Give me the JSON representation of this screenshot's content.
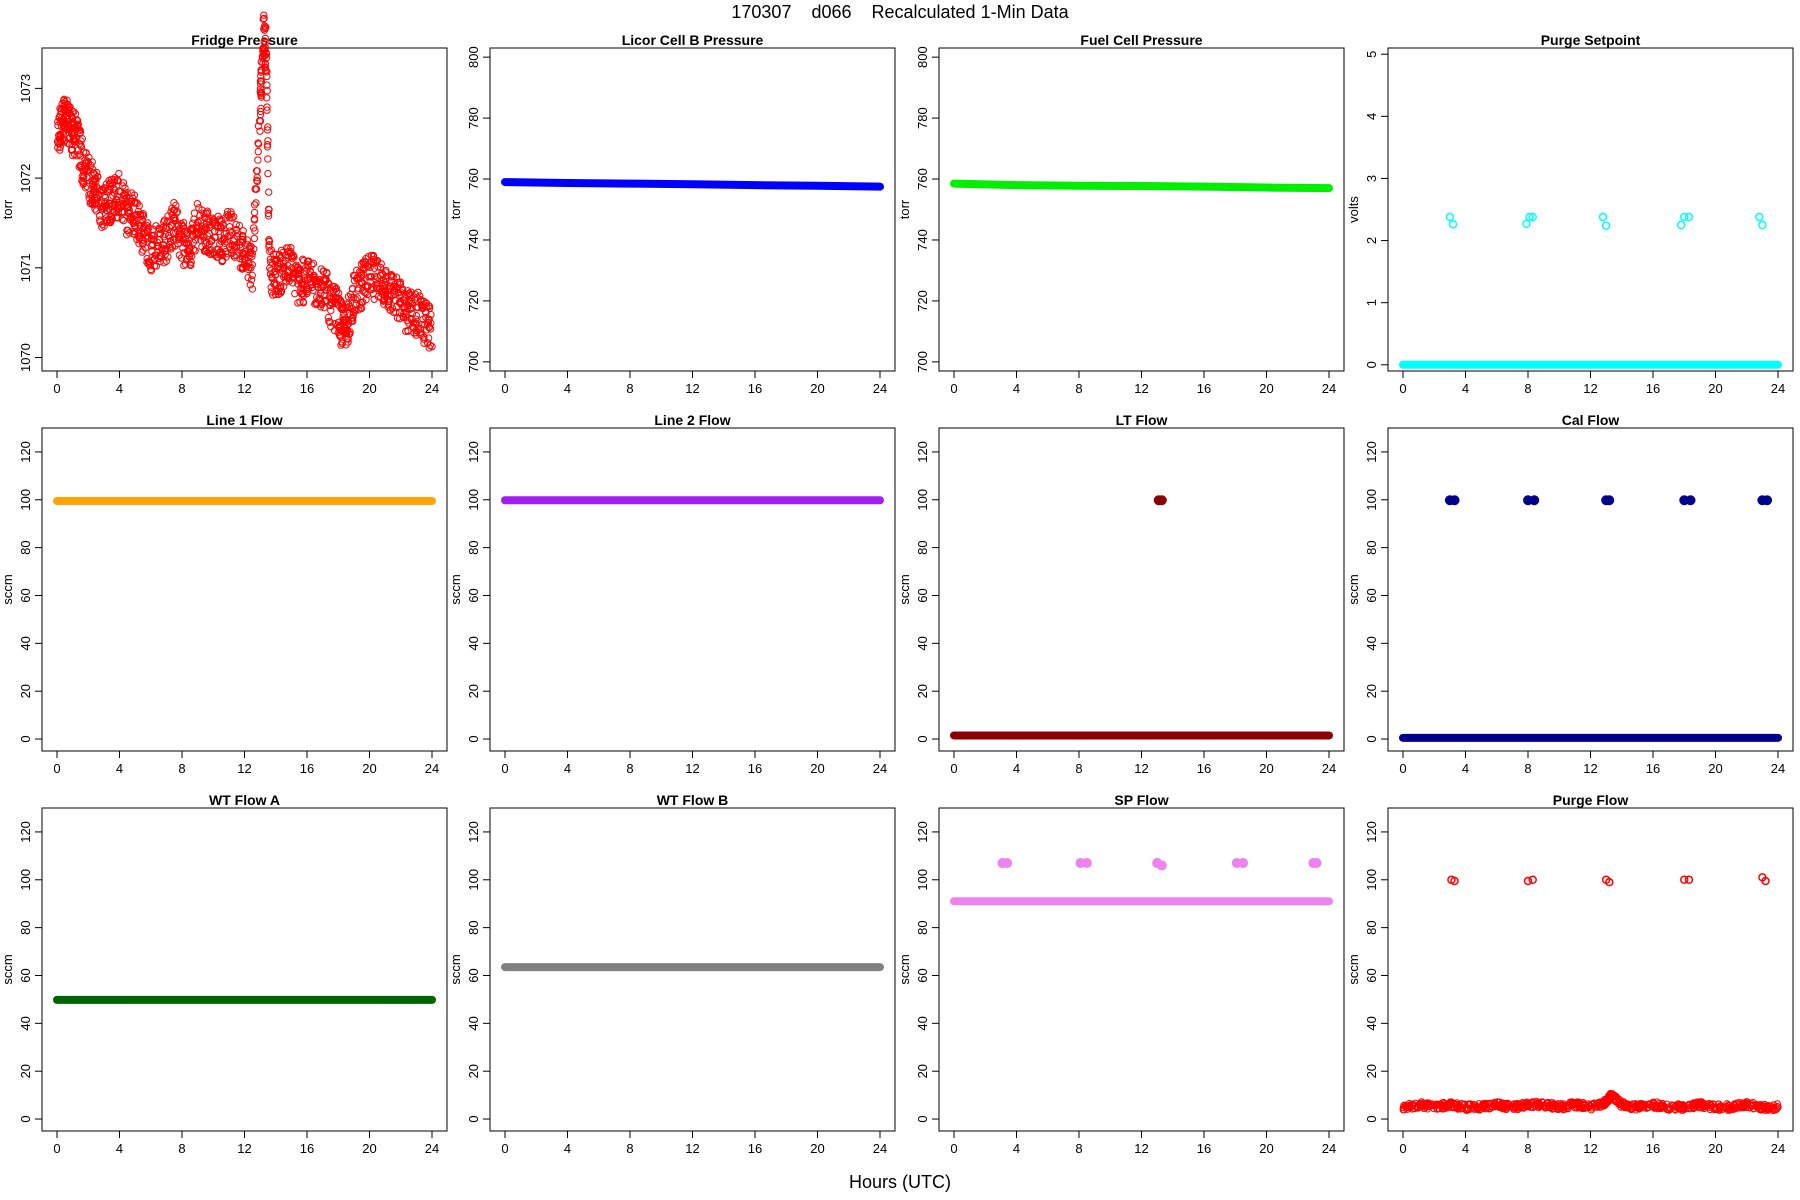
{
  "title": "170307    d066    Recalculated 1-Min Data",
  "xlabel": "Hours (UTC)",
  "chart_data": [
    {
      "type": "scatter",
      "title": "Fridge Pressure",
      "ylabel": "torr",
      "xlim": [
        0,
        24
      ],
      "xticks": [
        0,
        4,
        8,
        12,
        16,
        20,
        24
      ],
      "ylim": [
        1069.85,
        1073.45
      ],
      "yticks": [
        1070,
        1071,
        1072,
        1073
      ],
      "color": "#ff0000",
      "marker": "open-circle",
      "series": [
        {
          "x": [
            0,
            0.3,
            0.6,
            0.9,
            1.2,
            1.6,
            2.0,
            2.4,
            2.8,
            3.2,
            3.6,
            4.0,
            4.5,
            5.0,
            5.5,
            6.0,
            6.5,
            7.0,
            7.5,
            8.0,
            8.5,
            9.0,
            9.5,
            10.0,
            10.5,
            11.0,
            11.5,
            12.0,
            12.5,
            13.0,
            13.2,
            13.4,
            13.6,
            14.0,
            14.5,
            15.0,
            15.5,
            16.0,
            16.5,
            17.0,
            17.5,
            18.0,
            18.3,
            18.6,
            19.0,
            19.5,
            20.0,
            20.5,
            21.0,
            21.5,
            22.0,
            22.5,
            23.0,
            23.5,
            24.0
          ],
          "y": [
            1072.4,
            1072.6,
            1072.7,
            1072.5,
            1072.5,
            1072.2,
            1072.0,
            1071.9,
            1071.7,
            1071.7,
            1071.8,
            1071.8,
            1071.6,
            1071.6,
            1071.4,
            1071.2,
            1071.3,
            1071.3,
            1071.5,
            1071.3,
            1071.2,
            1071.5,
            1071.4,
            1071.4,
            1071.3,
            1071.4,
            1071.3,
            1071.2,
            1071.0,
            1072.8,
            1073.6,
            1073.4,
            1071.0,
            1070.9,
            1071.0,
            1071.0,
            1070.8,
            1070.9,
            1070.8,
            1070.8,
            1070.6,
            1070.5,
            1070.3,
            1070.4,
            1070.7,
            1070.8,
            1070.9,
            1070.9,
            1070.8,
            1070.7,
            1070.6,
            1070.5,
            1070.5,
            1070.4,
            1070.3
          ]
        }
      ]
    },
    {
      "type": "scatter",
      "title": "Licor Cell B Pressure",
      "ylabel": "torr",
      "xlim": [
        0,
        24
      ],
      "xticks": [
        0,
        4,
        8,
        12,
        16,
        20,
        24
      ],
      "ylim": [
        697,
        803
      ],
      "yticks": [
        700,
        720,
        740,
        760,
        780,
        800
      ],
      "color": "#0000ff",
      "marker": "filled",
      "series": [
        {
          "x": [
            0,
            4,
            8,
            12,
            16,
            20,
            24
          ],
          "y": [
            759.0,
            758.7,
            758.5,
            758.3,
            758.0,
            757.8,
            757.5
          ]
        }
      ]
    },
    {
      "type": "scatter",
      "title": "Fuel Cell Pressure",
      "ylabel": "torr",
      "xlim": [
        0,
        24
      ],
      "xticks": [
        0,
        4,
        8,
        12,
        16,
        20,
        24
      ],
      "ylim": [
        697,
        803
      ],
      "yticks": [
        700,
        720,
        740,
        760,
        780,
        800
      ],
      "color": "#00ee00",
      "marker": "filled",
      "series": [
        {
          "x": [
            0,
            4,
            8,
            12,
            16,
            20,
            24
          ],
          "y": [
            758.5,
            758.0,
            757.8,
            757.7,
            757.5,
            757.2,
            757.0
          ]
        }
      ]
    },
    {
      "type": "scatter",
      "title": "Purge Setpoint",
      "ylabel": "volts",
      "xlim": [
        0,
        24
      ],
      "xticks": [
        0,
        4,
        8,
        12,
        16,
        20,
        24
      ],
      "ylim": [
        -0.1,
        5.1
      ],
      "yticks": [
        0,
        1,
        2,
        3,
        4,
        5
      ],
      "color": "#00ffff",
      "marker": "filled",
      "series": [
        {
          "x": [
            0,
            24
          ],
          "y": [
            0,
            0
          ]
        }
      ],
      "points": [
        [
          3.0,
          2.38
        ],
        [
          3.2,
          2.26
        ],
        [
          7.9,
          2.27
        ],
        [
          8.1,
          2.38
        ],
        [
          8.3,
          2.38
        ],
        [
          12.8,
          2.38
        ],
        [
          13.0,
          2.24
        ],
        [
          17.8,
          2.25
        ],
        [
          18.0,
          2.38
        ],
        [
          18.3,
          2.38
        ],
        [
          22.8,
          2.38
        ],
        [
          23.0,
          2.25
        ]
      ]
    },
    {
      "type": "scatter",
      "title": "Line 1 Flow",
      "ylabel": "sccm",
      "xlim": [
        0,
        24
      ],
      "xticks": [
        0,
        4,
        8,
        12,
        16,
        20,
        24
      ],
      "ylim": [
        -5,
        130
      ],
      "yticks": [
        0,
        20,
        40,
        60,
        80,
        100,
        120
      ],
      "color": "#ffa500",
      "marker": "filled",
      "series": [
        {
          "x": [
            0,
            24
          ],
          "y": [
            99.5,
            99.5
          ]
        }
      ]
    },
    {
      "type": "scatter",
      "title": "Line 2 Flow",
      "ylabel": "sccm",
      "xlim": [
        0,
        24
      ],
      "xticks": [
        0,
        4,
        8,
        12,
        16,
        20,
        24
      ],
      "ylim": [
        -5,
        130
      ],
      "yticks": [
        0,
        20,
        40,
        60,
        80,
        100,
        120
      ],
      "color": "#a020f0",
      "marker": "filled",
      "series": [
        {
          "x": [
            0,
            24
          ],
          "y": [
            99.8,
            99.8
          ]
        }
      ]
    },
    {
      "type": "scatter",
      "title": "LT Flow",
      "ylabel": "sccm",
      "xlim": [
        0,
        24
      ],
      "xticks": [
        0,
        4,
        8,
        12,
        16,
        20,
        24
      ],
      "ylim": [
        -5,
        130
      ],
      "yticks": [
        0,
        20,
        40,
        60,
        80,
        100,
        120
      ],
      "color": "#8b0000",
      "marker": "filled",
      "series": [
        {
          "x": [
            0,
            24
          ],
          "y": [
            1.5,
            1.5
          ]
        }
      ],
      "points": [
        [
          13.1,
          99.8
        ],
        [
          13.3,
          99.8
        ]
      ]
    },
    {
      "type": "scatter",
      "title": "Cal Flow",
      "ylabel": "sccm",
      "xlim": [
        0,
        24
      ],
      "xticks": [
        0,
        4,
        8,
        12,
        16,
        20,
        24
      ],
      "ylim": [
        -5,
        130
      ],
      "yticks": [
        0,
        20,
        40,
        60,
        80,
        100,
        120
      ],
      "color": "#00008b",
      "marker": "filled",
      "series": [
        {
          "x": [
            0,
            24
          ],
          "y": [
            0.5,
            0.5
          ]
        }
      ],
      "points": [
        [
          3.0,
          99.8
        ],
        [
          3.3,
          99.8
        ],
        [
          8.0,
          99.8
        ],
        [
          8.4,
          99.8
        ],
        [
          13.0,
          99.8
        ],
        [
          13.2,
          99.8
        ],
        [
          18.0,
          99.8
        ],
        [
          18.4,
          99.8
        ],
        [
          23.0,
          99.8
        ],
        [
          23.3,
          99.8
        ]
      ]
    },
    {
      "type": "scatter",
      "title": "WT Flow A",
      "ylabel": "sccm",
      "xlim": [
        0,
        24
      ],
      "xticks": [
        0,
        4,
        8,
        12,
        16,
        20,
        24
      ],
      "ylim": [
        -5,
        130
      ],
      "yticks": [
        0,
        20,
        40,
        60,
        80,
        100,
        120
      ],
      "color": "#006400",
      "marker": "filled",
      "series": [
        {
          "x": [
            0,
            24
          ],
          "y": [
            49.8,
            49.8
          ]
        }
      ]
    },
    {
      "type": "scatter",
      "title": "WT Flow B",
      "ylabel": "sccm",
      "xlim": [
        0,
        24
      ],
      "xticks": [
        0,
        4,
        8,
        12,
        16,
        20,
        24
      ],
      "ylim": [
        -5,
        130
      ],
      "yticks": [
        0,
        20,
        40,
        60,
        80,
        100,
        120
      ],
      "color": "#808080",
      "marker": "filled",
      "series": [
        {
          "x": [
            0,
            24
          ],
          "y": [
            63.5,
            63.5
          ]
        }
      ]
    },
    {
      "type": "scatter",
      "title": "SP Flow",
      "ylabel": "sccm",
      "xlim": [
        0,
        24
      ],
      "xticks": [
        0,
        4,
        8,
        12,
        16,
        20,
        24
      ],
      "ylim": [
        -5,
        130
      ],
      "yticks": [
        0,
        20,
        40,
        60,
        80,
        100,
        120
      ],
      "color": "#ee82ee",
      "marker": "filled",
      "series": [
        {
          "x": [
            0,
            24
          ],
          "y": [
            91.0,
            91.0
          ]
        }
      ],
      "points": [
        [
          3.1,
          107.0
        ],
        [
          3.4,
          107.0
        ],
        [
          8.1,
          107.0
        ],
        [
          8.5,
          107.0
        ],
        [
          13.0,
          107.0
        ],
        [
          13.3,
          106.0
        ],
        [
          18.1,
          107.0
        ],
        [
          18.5,
          107.0
        ],
        [
          23.0,
          107.0
        ],
        [
          23.2,
          107.0
        ]
      ]
    },
    {
      "type": "scatter",
      "title": "Purge Flow",
      "ylabel": "sccm",
      "xlim": [
        0,
        24
      ],
      "xticks": [
        0,
        4,
        8,
        12,
        16,
        20,
        24
      ],
      "ylim": [
        -5,
        130
      ],
      "yticks": [
        0,
        20,
        40,
        60,
        80,
        100,
        120
      ],
      "color": "#ff0000",
      "marker": "open-circle",
      "series": [
        {
          "x": [
            0,
            1,
            2,
            3,
            4,
            5,
            6,
            7,
            8,
            9,
            10,
            11,
            12,
            13,
            13.3,
            14,
            15,
            16,
            17,
            18,
            19,
            20,
            21,
            22,
            23,
            24
          ],
          "y": [
            5,
            6,
            5,
            6,
            5,
            5,
            6,
            5,
            6,
            6,
            5,
            6,
            5,
            7,
            10,
            6,
            5,
            6,
            5,
            5,
            6,
            5,
            5,
            6,
            5,
            5
          ]
        }
      ],
      "points": [
        [
          3.1,
          100.0
        ],
        [
          3.3,
          99.5
        ],
        [
          8.0,
          99.5
        ],
        [
          8.3,
          100.0
        ],
        [
          13.0,
          100.0
        ],
        [
          13.2,
          99.0
        ],
        [
          18.0,
          100.0
        ],
        [
          18.3,
          100.0
        ],
        [
          23.0,
          101.0
        ],
        [
          23.2,
          99.5
        ]
      ]
    }
  ]
}
